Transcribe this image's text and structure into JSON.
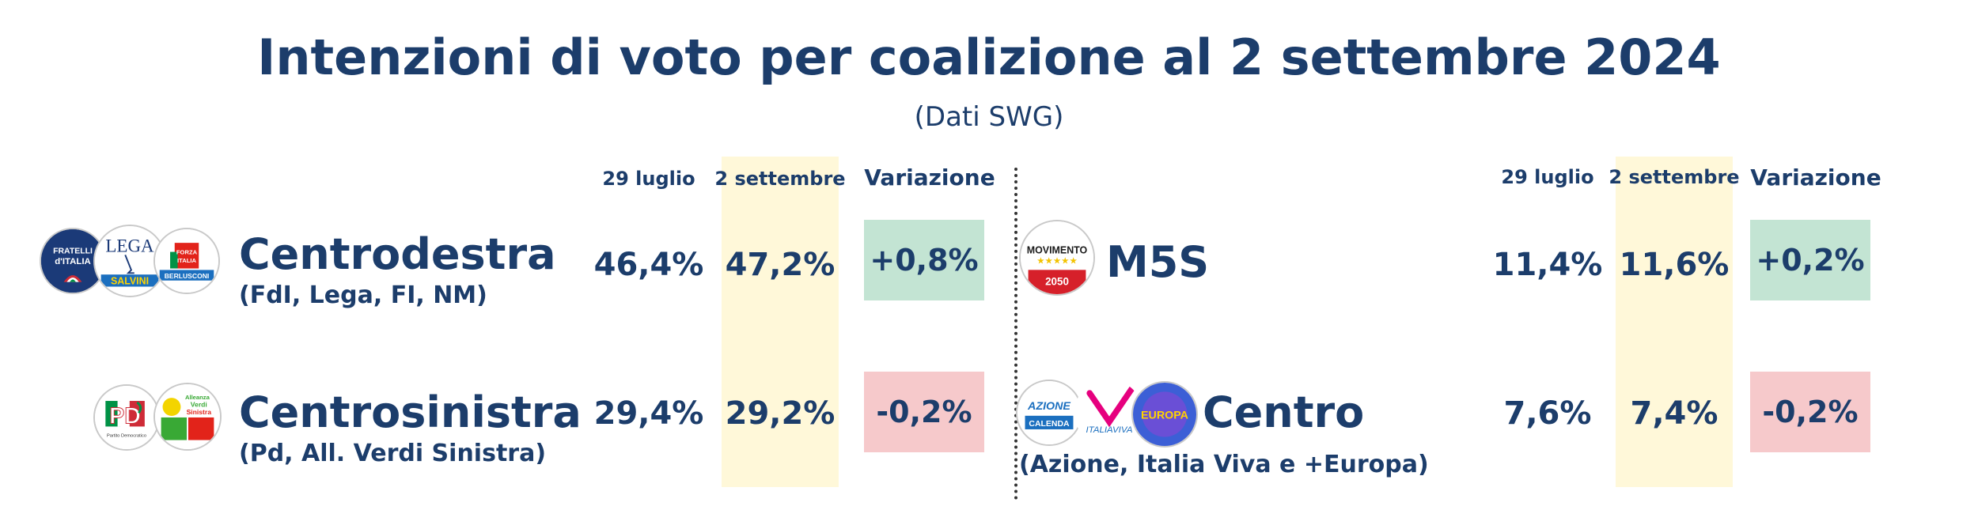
{
  "title": "Intenzioni di voto per coalizione al 2 settembre 2024",
  "subtitle": "(Dati SWG)",
  "columns": {
    "prev": "29 luglio",
    "curr": "2 settembre",
    "var": "Variazione"
  },
  "colors": {
    "text": "#1c3d6b",
    "highlight": "#fff8d9",
    "positive": "#c3e4d3",
    "negative": "#f6c9cb"
  },
  "logos": {
    "fdi": "Fratelli d'Italia logo",
    "fdi_text": "FRATELLI\nd'ITALIA",
    "lega": "Lega Salvini Premier logo",
    "lega_text": "LEGA",
    "lega_sub": "SALVINI",
    "fi": "Forza Italia Berlusconi Presidente logo",
    "fi_text": "FORZA ITALIA",
    "fi_sub": "BERLUSCONI",
    "pd": "Partito Democratico logo",
    "pd_text": "PD",
    "avs": "Alleanza Verdi Sinistra logo",
    "avs_text": "Alleanza Verdi Sinistra",
    "m5s": "Movimento 5 Stelle logo",
    "m5s_text": "MOVIMENTO",
    "m5s_sub": "2050",
    "azione": "Azione logo",
    "azione_text": "AZIONE",
    "azione_sub": "CALENDA",
    "iv": "Italia Viva logo",
    "iv_text": "ITALIAVIVA",
    "europa": "+Europa logo",
    "europa_text": "EUROPA"
  },
  "chart_data": {
    "type": "table",
    "title": "Intenzioni di voto per coalizione al 2 settembre 2024",
    "subtitle": "(Dati SWG)",
    "columns": [
      "29 luglio",
      "2 settembre",
      "Variazione"
    ],
    "rows": [
      {
        "name": "Centrodestra",
        "detail": "(FdI, Lega, FI, NM)",
        "prev": "46,4%",
        "curr": "47,2%",
        "var": "+0,8%",
        "prev_value": 46.4,
        "curr_value": 47.2,
        "var_value": 0.8
      },
      {
        "name": "Centrosinistra",
        "detail": "(Pd, All. Verdi Sinistra)",
        "prev": "29,4%",
        "curr": "29,2%",
        "var": "-0,2%",
        "prev_value": 29.4,
        "curr_value": 29.2,
        "var_value": -0.2
      },
      {
        "name": "M5S",
        "detail": "",
        "prev": "11,4%",
        "curr": "11,6%",
        "var": "+0,2%",
        "prev_value": 11.4,
        "curr_value": 11.6,
        "var_value": 0.2
      },
      {
        "name": "Centro",
        "detail": "(Azione, Italia Viva e +Europa)",
        "prev": "7,6%",
        "curr": "7,4%",
        "var": "-0,2%",
        "prev_value": 7.6,
        "curr_value": 7.4,
        "var_value": -0.2
      }
    ]
  }
}
